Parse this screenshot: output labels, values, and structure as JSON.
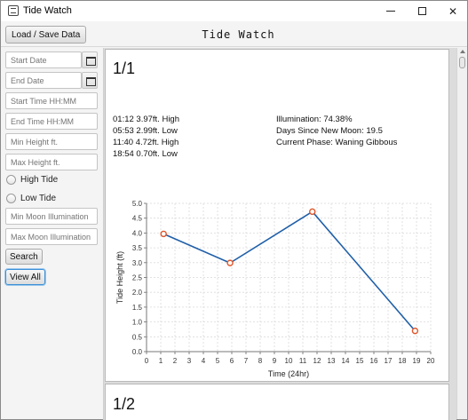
{
  "window": {
    "title": "Tide Watch"
  },
  "header": {
    "load_label": "Load / Save Data",
    "app_title": "Tide Watch"
  },
  "sidebar": {
    "start_date_placeholder": "Start Date",
    "end_date_placeholder": "End Date",
    "start_time_placeholder": "Start Time HH:MM",
    "end_time_placeholder": "End Time HH:MM",
    "min_height_placeholder": "Min Height ft.",
    "max_height_placeholder": "Max Height ft.",
    "high_tide_label": "High Tide",
    "low_tide_label": "Low Tide",
    "min_moon_placeholder": "Min Moon Illumination",
    "max_moon_placeholder": "Max Moon Illumination",
    "search_label": "Search",
    "view_all_label": "View All"
  },
  "results": [
    {
      "page": "1/1",
      "tides": [
        "01:12 3.97ft. High",
        "05:53 2.99ft. Low",
        "11:40 4.72ft. High",
        "18:54 0.70ft. Low"
      ],
      "moon": [
        "Illumination: 74.38%",
        "Days Since New Moon: 19.5",
        "Current Phase: Waning Gibbous"
      ]
    },
    {
      "page": "1/2"
    }
  ],
  "chart_data": {
    "type": "line",
    "xlabel": "Time (24hr)",
    "ylabel": "Tide Height (ft)",
    "xlim": [
      0,
      20
    ],
    "ylim": [
      0,
      5
    ],
    "xticks": [
      0,
      1,
      2,
      3,
      4,
      5,
      6,
      7,
      8,
      9,
      10,
      11,
      12,
      13,
      14,
      15,
      16,
      17,
      18,
      19,
      20
    ],
    "yticks": [
      "0.0",
      "0.5",
      "1.0",
      "1.5",
      "2.0",
      "2.5",
      "3.0",
      "3.5",
      "4.0",
      "4.5",
      "5.0"
    ],
    "grid": true,
    "series": [
      {
        "x": [
          1.2,
          5.88,
          11.67,
          18.9
        ],
        "y": [
          3.97,
          2.99,
          4.72,
          0.7
        ]
      }
    ],
    "colors": {
      "line": "#1f5fa8",
      "marker": "#e0562a",
      "grid": "#d9d9d9"
    }
  }
}
